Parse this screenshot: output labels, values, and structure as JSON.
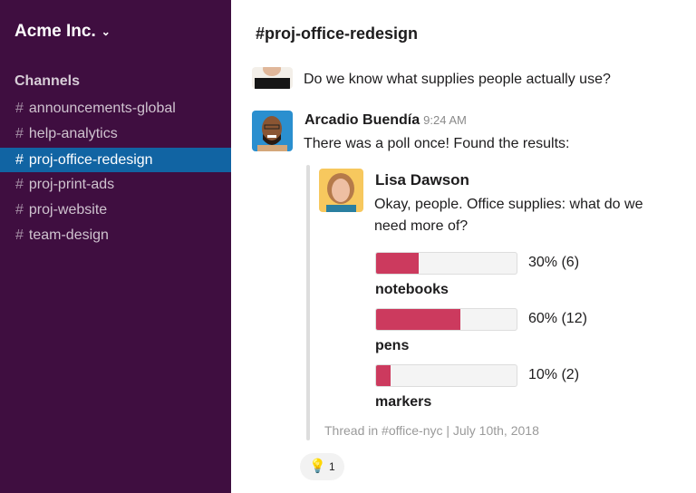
{
  "sidebar": {
    "workspace": "Acme Inc.",
    "section": "Channels",
    "channels": [
      {
        "name": "announcements-global",
        "selected": false
      },
      {
        "name": "help-analytics",
        "selected": false
      },
      {
        "name": "proj-office-redesign",
        "selected": true
      },
      {
        "name": "proj-print-ads",
        "selected": false
      },
      {
        "name": "proj-website",
        "selected": false
      },
      {
        "name": "team-design",
        "selected": false
      }
    ],
    "hash": "#"
  },
  "header": {
    "title": "#proj-office-redesign"
  },
  "messages": [
    {
      "text": "Do we know what supplies people actually use?"
    },
    {
      "author": "Arcadio Buendía",
      "time": "9:24 AM",
      "text": "There was a poll once! Found the results:"
    }
  ],
  "quote": {
    "author": "Lisa Dawson",
    "line1": "Okay, people. Office supplies: what do we",
    "line2": "need more of?",
    "options": [
      {
        "label": "notebooks",
        "percent": 30,
        "result": "30% (6)"
      },
      {
        "label": "pens",
        "percent": 60,
        "result": "60% (12)"
      },
      {
        "label": "markers",
        "percent": 10,
        "result": "10% (2)"
      }
    ],
    "footer": "Thread in #office-nyc | July 10th, 2018"
  },
  "reaction": {
    "emoji": "💡",
    "icon": "lightbulb-icon",
    "count": "1"
  },
  "colors": {
    "sidebar": "#3f0e40",
    "selected": "#1164a3",
    "poll_fill": "#cc3a5e"
  }
}
